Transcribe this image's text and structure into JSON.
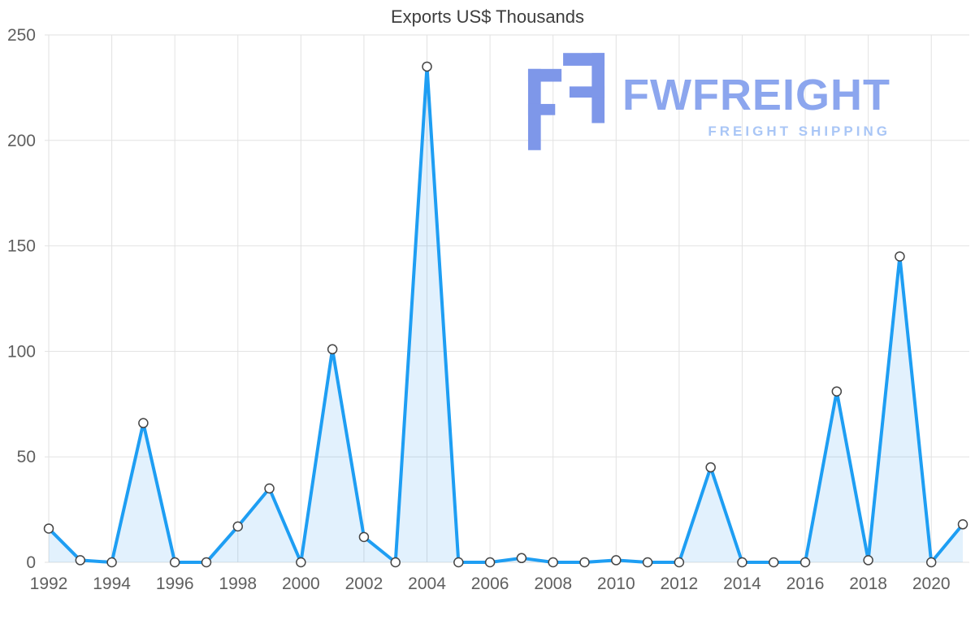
{
  "chart_data": {
    "type": "area",
    "title": "Exports US$ Thousands",
    "x": [
      1992,
      1993,
      1994,
      1995,
      1996,
      1997,
      1998,
      1999,
      2000,
      2001,
      2002,
      2003,
      2004,
      2005,
      2006,
      2007,
      2008,
      2009,
      2010,
      2011,
      2012,
      2013,
      2014,
      2015,
      2016,
      2017,
      2018,
      2019,
      2020,
      2021
    ],
    "values": [
      16,
      1,
      0,
      66,
      0,
      0,
      17,
      35,
      0,
      101,
      12,
      0,
      235,
      0,
      0,
      2,
      0,
      0,
      1,
      0,
      0,
      45,
      0,
      0,
      0,
      81,
      1,
      145,
      0,
      18
    ],
    "xlabel": "",
    "ylabel": "",
    "ylim": [
      0,
      250
    ],
    "yticks": [
      0,
      50,
      100,
      150,
      200,
      250
    ],
    "xticks": [
      1992,
      1994,
      1996,
      1998,
      2000,
      2002,
      2004,
      2006,
      2008,
      2010,
      2012,
      2014,
      2016,
      2018,
      2020
    ],
    "grid": true,
    "legend": "none",
    "line_color": "#1e9ef3",
    "fill_color": "rgba(33,150,243,0.13)",
    "marker_fill": "#ffffff",
    "marker_stroke": "#454545"
  },
  "watermark": {
    "brand": "FWFREIGHT",
    "tagline": "FREIGHT SHIPPING",
    "brand_color": "#8ca6ee",
    "tagline_color": "#a9c6f6",
    "icon_color": "#7e97e9",
    "icon_name": "fwfreight-logo-icon"
  }
}
